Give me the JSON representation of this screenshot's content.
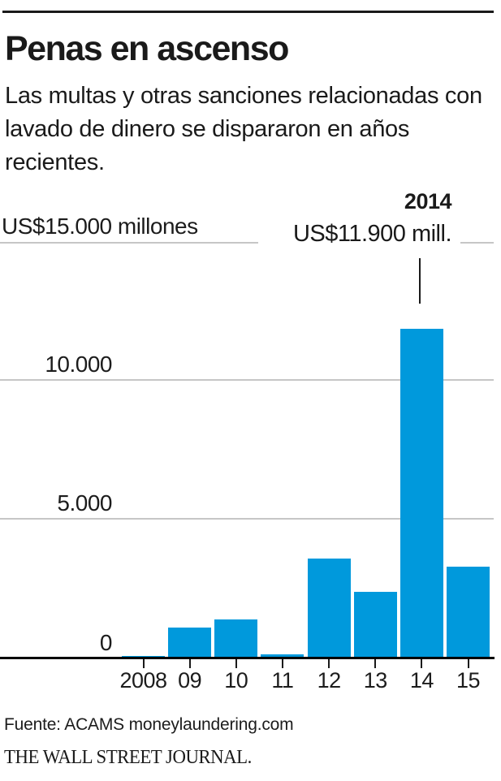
{
  "header": {
    "title": "Penas en ascenso",
    "subtitle": "Las multas y otras sanciones relacionadas con lavado de dinero se dispararon en años recientes."
  },
  "chart_data": {
    "type": "bar",
    "title": "Penas en ascenso",
    "subtitle": "Las multas y otras sanciones relacionadas con lavado de dinero se dispararon en años recientes.",
    "unit_label": "US$15.000 millones",
    "categories": [
      "2008",
      "09",
      "10",
      "11",
      "12",
      "13",
      "14",
      "15"
    ],
    "values": [
      90,
      1100,
      1400,
      150,
      3600,
      2400,
      11900,
      3300
    ],
    "ylim": [
      0,
      15000
    ],
    "yticks": [
      {
        "label": "US$15.000 millones",
        "value": 15000
      },
      {
        "label": "10.000",
        "value": 10000
      },
      {
        "label": "5.000",
        "value": 5000
      },
      {
        "label": "0",
        "value": 0
      }
    ],
    "grid": "horizontal",
    "legend": "none",
    "bar_color": "#0099dc",
    "annotation": {
      "year_label": "2014",
      "value_label": "US$11.900 mill.",
      "target_category": "14",
      "target_value": 11900
    }
  },
  "footer": {
    "source": "Fuente: ACAMS moneylaundering.com",
    "brand": "THE WALL STREET JOURNAL."
  },
  "colors": {
    "bar": "#0099dc",
    "grid": "#c6c6c6",
    "text": "#1a1a1a",
    "axis": "#000000"
  }
}
